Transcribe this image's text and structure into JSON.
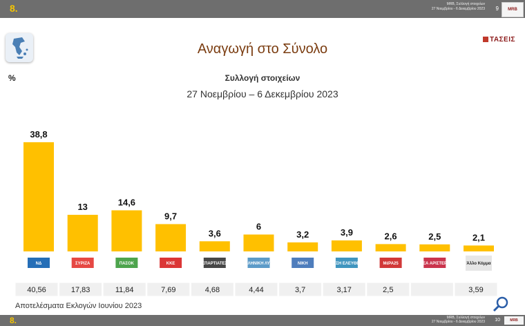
{
  "header": {
    "slide_number": "8.",
    "line1": "MRB, Συλλογή στοιχείων",
    "line2": "27 Νοεμβρίου - 6 Δεκεμβρίου 2023",
    "page": "9",
    "brand": "MRB"
  },
  "footer": {
    "slide_number": "8.",
    "line1": "MRB, Συλλογή στοιχείων",
    "line2": "27 Νοεμβρίου - 6 Δεκεμβρίου 2023",
    "page": "10",
    "brand": "MRB"
  },
  "unit_label": "%",
  "logo_text": "ΤΑΣΕΙΣ",
  "chart_data": {
    "type": "bar",
    "title": "Αναγωγή στο Σύνολο",
    "subtitle": "Συλλογή στοιχείων",
    "date_range": "27 Νοεμβρίου – 6 Δεκεμβρίου  2023",
    "categories": [
      "ΝΔ",
      "ΣΥΡΙΖΑ",
      "ΠΑΣΟΚ",
      "ΚΚΕ",
      "ΣΠΑΡΤΙΑΤΕΣ",
      "ΕΛΛΗΝΙΚΗ ΛΥΣΗ",
      "ΝΙΚΗ",
      "ΠΛΕΥΣΗ ΕΛΕΥΘΕΡΙΑΣ",
      "ΜέΡΑ25",
      "ΝΕΑ ΑΡΙΣΤΕΡΑ",
      "Άλλο Κόμμα"
    ],
    "values": [
      38.8,
      13,
      14.6,
      9.7,
      3.6,
      6,
      3.2,
      3.9,
      2.6,
      2.5,
      2.1
    ],
    "value_labels": [
      "38,8",
      "13",
      "14,6",
      "9,7",
      "3,6",
      "6",
      "3,2",
      "3,9",
      "2,6",
      "2,5",
      "2,1"
    ],
    "colors": [
      "#0d5eaf",
      "#e3342f",
      "#3a9a3a",
      "#d72020",
      "#333333",
      "#4a90c2",
      "#3b6fb5",
      "#2b8ab8",
      "#cc2222",
      "#c41e3a",
      "#dddddd"
    ],
    "bar_color": "#ffc000",
    "previous_results_label": "Αποτελέσματα Εκλογών Ιουνίου 2023",
    "previous_results": [
      "40,56",
      "17,83",
      "11,84",
      "7,69",
      "4,68",
      "4,44",
      "3,7",
      "3,17",
      "2,5",
      "",
      "3,59"
    ],
    "ylim": [
      0,
      40
    ],
    "legend": "none",
    "grid": false
  }
}
